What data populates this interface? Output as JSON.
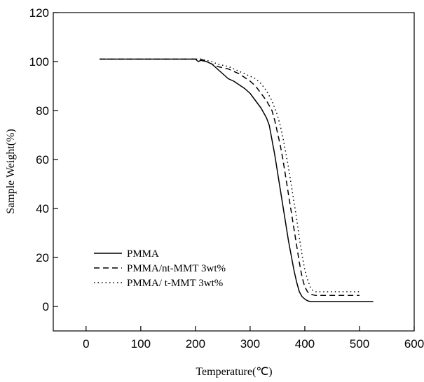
{
  "chart_data": {
    "type": "line",
    "title": "",
    "xlabel": "Temperature(℃)",
    "ylabel": "Sample Weight(%)",
    "xlim": [
      -60,
      600
    ],
    "ylim": [
      -10,
      120
    ],
    "xticks": [
      0,
      100,
      200,
      300,
      400,
      500,
      600
    ],
    "yticks": [
      0,
      20,
      40,
      60,
      80,
      100,
      120
    ],
    "grid": false,
    "legend_position": "bottom-left",
    "series": [
      {
        "name": "PMMA",
        "style": "solid",
        "color": "#000000",
        "points": [
          [
            25,
            101
          ],
          [
            100,
            101
          ],
          [
            150,
            101
          ],
          [
            200,
            101
          ],
          [
            205,
            100
          ],
          [
            210,
            100.5
          ],
          [
            220,
            100
          ],
          [
            230,
            99
          ],
          [
            240,
            97
          ],
          [
            250,
            95
          ],
          [
            260,
            93
          ],
          [
            270,
            92
          ],
          [
            280,
            90.5
          ],
          [
            290,
            89
          ],
          [
            300,
            87
          ],
          [
            310,
            84
          ],
          [
            320,
            81
          ],
          [
            330,
            77
          ],
          [
            335,
            74
          ],
          [
            340,
            68
          ],
          [
            345,
            62
          ],
          [
            350,
            55
          ],
          [
            355,
            48
          ],
          [
            360,
            41
          ],
          [
            365,
            34
          ],
          [
            370,
            27
          ],
          [
            375,
            21
          ],
          [
            380,
            15
          ],
          [
            385,
            10
          ],
          [
            390,
            6
          ],
          [
            395,
            4
          ],
          [
            400,
            3
          ],
          [
            405,
            2.3
          ],
          [
            410,
            2
          ],
          [
            420,
            2
          ],
          [
            450,
            2
          ],
          [
            500,
            2
          ],
          [
            525,
            2
          ]
        ]
      },
      {
        "name": "PMMA/nt-MMT 3wt%",
        "style": "dashed",
        "color": "#000000",
        "points": [
          [
            25,
            101
          ],
          [
            100,
            101
          ],
          [
            150,
            101
          ],
          [
            200,
            101
          ],
          [
            210,
            101
          ],
          [
            220,
            100
          ],
          [
            230,
            99
          ],
          [
            240,
            98
          ],
          [
            250,
            97.5
          ],
          [
            260,
            97
          ],
          [
            270,
            96
          ],
          [
            280,
            95
          ],
          [
            290,
            93.5
          ],
          [
            300,
            92
          ],
          [
            310,
            90
          ],
          [
            320,
            87
          ],
          [
            330,
            84
          ],
          [
            340,
            80
          ],
          [
            345,
            76
          ],
          [
            350,
            71
          ],
          [
            355,
            66
          ],
          [
            360,
            60
          ],
          [
            365,
            53
          ],
          [
            370,
            46
          ],
          [
            375,
            39
          ],
          [
            380,
            32
          ],
          [
            385,
            25
          ],
          [
            390,
            18
          ],
          [
            395,
            12
          ],
          [
            400,
            8
          ],
          [
            405,
            6
          ],
          [
            410,
            5
          ],
          [
            420,
            4.5
          ],
          [
            450,
            4.5
          ],
          [
            500,
            4.5
          ]
        ]
      },
      {
        "name": "PMMA/ t-MMT 3wt%",
        "style": "dotted",
        "color": "#000000",
        "points": [
          [
            25,
            101
          ],
          [
            100,
            101
          ],
          [
            150,
            101
          ],
          [
            200,
            101
          ],
          [
            210,
            101
          ],
          [
            220,
            100.5
          ],
          [
            230,
            100
          ],
          [
            240,
            99
          ],
          [
            250,
            98.5
          ],
          [
            260,
            98
          ],
          [
            270,
            97
          ],
          [
            280,
            96
          ],
          [
            290,
            95
          ],
          [
            300,
            94
          ],
          [
            310,
            93
          ],
          [
            320,
            91
          ],
          [
            330,
            88
          ],
          [
            340,
            84
          ],
          [
            350,
            78
          ],
          [
            355,
            74
          ],
          [
            360,
            69
          ],
          [
            365,
            63
          ],
          [
            370,
            57
          ],
          [
            375,
            50
          ],
          [
            380,
            43
          ],
          [
            385,
            36
          ],
          [
            390,
            28
          ],
          [
            395,
            21
          ],
          [
            400,
            15
          ],
          [
            405,
            11
          ],
          [
            410,
            8
          ],
          [
            415,
            6.5
          ],
          [
            420,
            6
          ],
          [
            430,
            6
          ],
          [
            450,
            6
          ],
          [
            500,
            6
          ]
        ]
      }
    ]
  }
}
